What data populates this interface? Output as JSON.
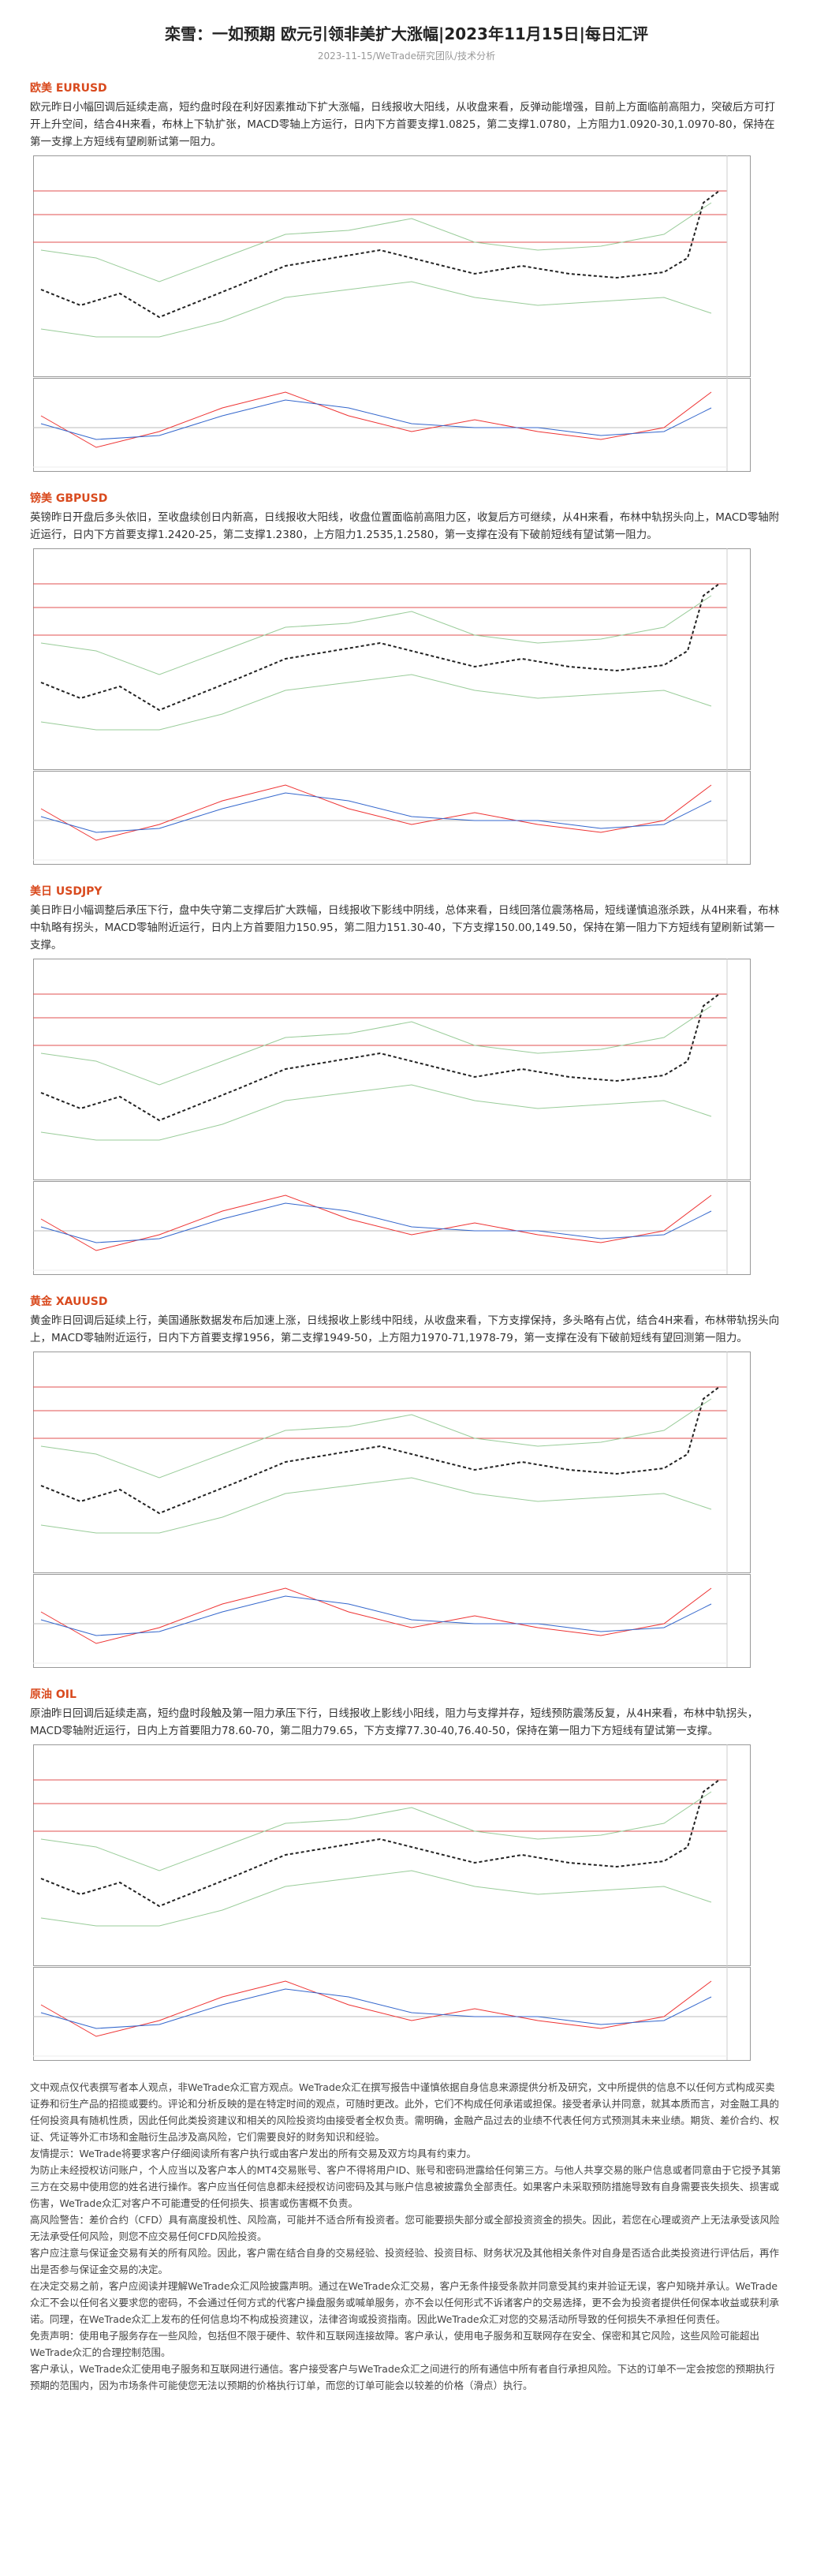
{
  "header": {
    "title": "栾雪：一如预期 欧元引领非美扩大涨幅|2023年11月15日|每日汇评",
    "subtitle": "2023-11-15/WeTrade研究团队/技术分析"
  },
  "sections": [
    {
      "heading": "欧美 EURUSD",
      "text": "欧元昨日小幅回调后延续走高，短约盘时段在利好因素推动下扩大涨幅，日线报收大阳线，从收盘来看，反弹动能增强，目前上方面临前高阻力，突破后方可打开上升空间，结合4H来看，布林上下轨扩张，MACD零轴上方运行，日内下方首要支撑1.0825，第二支撑1.0780，上方阻力1.0920-30,1.0970-80，保持在第一支撑上方短线有望刷新试第一阻力。"
    },
    {
      "heading": "镑美 GBPUSD",
      "text": "英镑昨日开盘后多头依旧，至收盘续创日内新高，日线报收大阳线，收盘位置面临前高阻力区，收复后方可继续，从4H来看，布林中轨拐头向上，MACD零轴附近运行，日内下方首要支撑1.2420-25，第二支撑1.2380，上方阻力1.2535,1.2580，第一支撑在没有下破前短线有望试第一阻力。"
    },
    {
      "heading": "美日 USDJPY",
      "text": "美日昨日小幅调整后承压下行，盘中失守第二支撑后扩大跌幅，日线报收下影线中阴线，总体来看，日线回落位震荡格局，短线谨慎追涨杀跌，从4H来看，布林中轨略有拐头，MACD零轴附近运行，日内上方首要阻力150.95，第二阻力151.30-40，下方支撑150.00,149.50，保持在第一阻力下方短线有望刷新试第一支撑。"
    },
    {
      "heading": "黄金 XAUUSD",
      "text": "黄金昨日回调后延续上行，美国通胀数据发布后加速上涨，日线报收上影线中阳线，从收盘来看，下方支撑保持，多头略有占优，结合4H来看，布林带轨拐头向上，MACD零轴附近运行，日内下方首要支撑1956，第二支撑1949-50，上方阻力1970-71,1978-79，第一支撑在没有下破前短线有望回测第一阻力。"
    },
    {
      "heading": "原油 OIL",
      "text": "原油昨日回调后延续走高，短约盘时段触及第一阻力承压下行，日线报收上影线小阳线，阻力与支撑并存，短线预防震荡反复，从4H来看，布林中轨拐头，MACD零轴附近运行，日内上方首要阻力78.60-70，第二阻力79.65，下方支撑77.30-40,76.40-50，保持在第一阻力下方短线有望试第一支撑。"
    }
  ],
  "disclaimer": [
    "文中观点仅代表撰写者本人观点，非WeTrade众汇官方观点。WeTrade众汇在撰写报告中谨慎依据自身信息来源提供分析及研究，文中所提供的信息不以任何方式构成买卖证券和衍生产品的招揽或要约。评论和分析反映的是在特定时间的观点，可随时更改。此外，它们不构成任何承诺或担保。接受者承认并同意，就其本质而言，对金融工具的任何投资具有随机性质，因此任何此类投资建议和相关的风险投资均由接受者全权负责。需明确，金融产品过去的业绩不代表任何方式预测其未来业绩。期货、差价合约、权证、凭证等外汇市场和金融衍生品涉及高风险，它们需要良好的财务知识和经验。",
    "友情提示：WeTrade将要求客户仔细阅读所有客户执行或由客户发出的所有交易及双方均具有约束力。",
    "为防止未经授权访问账户，个人应当以及客户本人的MT4交易账号、客户不得将用户ID、账号和密码泄露给任何第三方。与他人共享交易的账户信息或者同意由于它授予其第三方在交易中使用您的姓名进行操作。客户应当任何信息都未经授权访问密码及其与账户信息被披露负全部责任。如果客户未采取预防措施导致有自身需要丧失损失、损害或伤害，WeTrade众汇对客户不可能遭受的任何损失、损害或伤害概不负责。",
    "高风险警告：差价合约（CFD）具有高度投机性、风险高，可能并不适合所有投资者。您可能要损失部分或全部投资资金的损失。因此，若您在心理或资产上无法承受该风险无法承受任何风险，则您不应交易任何CFD风险投资。",
    "客户应注意与保证金交易有关的所有风险。因此，客户需在结合自身的交易经验、投资经验、投资目标、财务状况及其他相关条件对自身是否适合此类投资进行评估后，再作出是否参与保证金交易的决定。",
    "在决定交易之前，客户应阅读并理解WeTrade众汇风险披露声明。通过在WeTrade众汇交易，客户无条件接受条款并同意受其约束并验证无误，客户知晓并承认。WeTrade众汇不会以任何名义要求您的密码，不会通过任何方式的代客户操盘服务或喊单服务，亦不会以任何形式不诉诸客户的交易选择，更不会为投资者提供任何保本收益或获利承诺。同理，在WeTrade众汇上发布的任何信息均不构成投资建议，法律咨询或投资指南。因此WeTrade众汇对您的交易活动所导致的任何损失不承担任何责任。",
    "免责声明：使用电子服务存在一些风险，包括但不限于硬件、软件和互联网连接故障。客户承认，使用电子服务和互联网存在安全、保密和其它风险，这些风险可能超出WeTrade众汇的合理控制范围。",
    "客户承认，WeTrade众汇使用电子服务和互联网进行通信。客户接受客户与WeTrade众汇之间进行的所有通信中所有者自行承担风险。下达的订单不一定会按您的预期执行预期的范围内，因为市场条件可能使您无法以预期的价格执行订单，而您的订单可能会以较差的价格（滑点）执行。"
  ]
}
